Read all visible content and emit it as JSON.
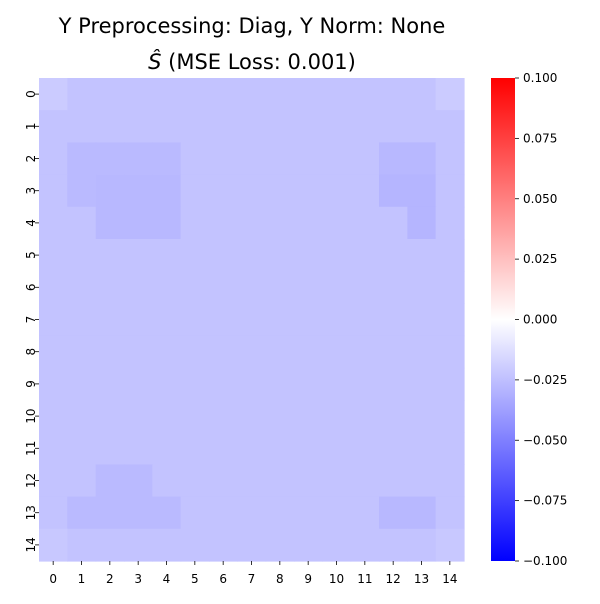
{
  "chart_data": {
    "type": "heatmap",
    "title_line1": "Y Preprocessing: Diag, Y Norm: None",
    "title_line2_symbol": "Ŝ",
    "title_line2_rest": " (MSE Loss: 0.001)",
    "x_tick_labels": [
      "0",
      "1",
      "2",
      "3",
      "4",
      "5",
      "6",
      "7",
      "8",
      "9",
      "10",
      "11",
      "12",
      "13",
      "14"
    ],
    "y_tick_labels": [
      "0",
      "1",
      "2",
      "3",
      "4",
      "5",
      "6",
      "7",
      "8",
      "9",
      "10",
      "11",
      "12",
      "13",
      "14"
    ],
    "colormap": {
      "name": "bwr",
      "low_color": "#0000ff",
      "mid_color": "#ffffff",
      "high_color": "#ff0000"
    },
    "vmin": -0.1,
    "vmax": 0.1,
    "colorbar_ticks": [
      {
        "value": 0.1,
        "label": "0.100"
      },
      {
        "value": 0.075,
        "label": "0.075"
      },
      {
        "value": 0.05,
        "label": "0.050"
      },
      {
        "value": 0.025,
        "label": "0.025"
      },
      {
        "value": 0.0,
        "label": "0.000"
      },
      {
        "value": -0.025,
        "label": "−0.025"
      },
      {
        "value": -0.05,
        "label": "−0.050"
      },
      {
        "value": -0.075,
        "label": "−0.075"
      },
      {
        "value": -0.1,
        "label": "−0.100"
      }
    ],
    "values": [
      [
        -0.0205,
        -0.0235,
        -0.0235,
        -0.0235,
        -0.0235,
        -0.0235,
        -0.0235,
        -0.0235,
        -0.0235,
        -0.0235,
        -0.0235,
        -0.0235,
        -0.0235,
        -0.0235,
        -0.0205
      ],
      [
        -0.0235,
        -0.0235,
        -0.0235,
        -0.0235,
        -0.0235,
        -0.0235,
        -0.0235,
        -0.0235,
        -0.0235,
        -0.0235,
        -0.0235,
        -0.0235,
        -0.0235,
        -0.0235,
        -0.0235
      ],
      [
        -0.0235,
        -0.027,
        -0.027,
        -0.027,
        -0.027,
        -0.0235,
        -0.0235,
        -0.0235,
        -0.0235,
        -0.0235,
        -0.0235,
        -0.0235,
        -0.028,
        -0.028,
        -0.0235
      ],
      [
        -0.0235,
        -0.027,
        -0.028,
        -0.028,
        -0.028,
        -0.0235,
        -0.0235,
        -0.0235,
        -0.0235,
        -0.0235,
        -0.0235,
        -0.0235,
        -0.029,
        -0.029,
        -0.0235
      ],
      [
        -0.0235,
        -0.0235,
        -0.028,
        -0.028,
        -0.028,
        -0.0235,
        -0.0235,
        -0.0235,
        -0.0235,
        -0.0235,
        -0.0235,
        -0.0235,
        -0.0235,
        -0.029,
        -0.0235
      ],
      [
        -0.0235,
        -0.0235,
        -0.0235,
        -0.0235,
        -0.0235,
        -0.0235,
        -0.0235,
        -0.0235,
        -0.0235,
        -0.0235,
        -0.0235,
        -0.0235,
        -0.0235,
        -0.0235,
        -0.0235
      ],
      [
        -0.0235,
        -0.0235,
        -0.0235,
        -0.0235,
        -0.0235,
        -0.0235,
        -0.0235,
        -0.0235,
        -0.0235,
        -0.0235,
        -0.0235,
        -0.0235,
        -0.0235,
        -0.0235,
        -0.0235
      ],
      [
        -0.0235,
        -0.0235,
        -0.0235,
        -0.0235,
        -0.0235,
        -0.0235,
        -0.0235,
        -0.0235,
        -0.0235,
        -0.0235,
        -0.0235,
        -0.0235,
        -0.0235,
        -0.0235,
        -0.0235
      ],
      [
        -0.0235,
        -0.0235,
        -0.0235,
        -0.0235,
        -0.0235,
        -0.0235,
        -0.0235,
        -0.0235,
        -0.0235,
        -0.0235,
        -0.0235,
        -0.0235,
        -0.0235,
        -0.0235,
        -0.0235
      ],
      [
        -0.0235,
        -0.0235,
        -0.0235,
        -0.0235,
        -0.0235,
        -0.0235,
        -0.0235,
        -0.0235,
        -0.0235,
        -0.0235,
        -0.0235,
        -0.0235,
        -0.0235,
        -0.0235,
        -0.0235
      ],
      [
        -0.0235,
        -0.0235,
        -0.0235,
        -0.0235,
        -0.0235,
        -0.0235,
        -0.0235,
        -0.0235,
        -0.0235,
        -0.0235,
        -0.0235,
        -0.0235,
        -0.0235,
        -0.0235,
        -0.0235
      ],
      [
        -0.0235,
        -0.0235,
        -0.0235,
        -0.0235,
        -0.0235,
        -0.0235,
        -0.0235,
        -0.0235,
        -0.0235,
        -0.0235,
        -0.0235,
        -0.0235,
        -0.0235,
        -0.0235,
        -0.0235
      ],
      [
        -0.0235,
        -0.0235,
        -0.027,
        -0.027,
        -0.0235,
        -0.0235,
        -0.0235,
        -0.0235,
        -0.0235,
        -0.0235,
        -0.0235,
        -0.0235,
        -0.0235,
        -0.0235,
        -0.0235
      ],
      [
        -0.0235,
        -0.027,
        -0.027,
        -0.027,
        -0.027,
        -0.0235,
        -0.0235,
        -0.0235,
        -0.0235,
        -0.0235,
        -0.0235,
        -0.0235,
        -0.028,
        -0.028,
        -0.0235
      ],
      [
        -0.0215,
        -0.0235,
        -0.0235,
        -0.0235,
        -0.0235,
        -0.0235,
        -0.0235,
        -0.0235,
        -0.0235,
        -0.0235,
        -0.0235,
        -0.0235,
        -0.0235,
        -0.0235,
        -0.0215
      ]
    ]
  }
}
